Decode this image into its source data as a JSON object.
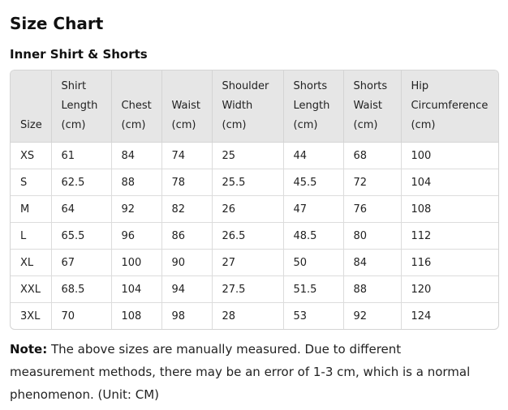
{
  "title": "Size Chart",
  "subtitle": "Inner Shirt & Shorts",
  "columns": [
    [
      "Size"
    ],
    [
      "Shirt",
      "Length",
      "(cm)"
    ],
    [
      "Chest",
      "(cm)"
    ],
    [
      "Waist",
      "(cm)"
    ],
    [
      "Shoulder",
      "Width",
      "(cm)"
    ],
    [
      "Shorts",
      "Length",
      "(cm)"
    ],
    [
      "Shorts",
      "Waist",
      "(cm)"
    ],
    [
      "Hip",
      "Circumference",
      "(cm)"
    ]
  ],
  "rows": [
    [
      "XS",
      "61",
      "84",
      "74",
      "25",
      "44",
      "68",
      "100"
    ],
    [
      "S",
      "62.5",
      "88",
      "78",
      "25.5",
      "45.5",
      "72",
      "104"
    ],
    [
      "M",
      "64",
      "92",
      "82",
      "26",
      "47",
      "76",
      "108"
    ],
    [
      "L",
      "65.5",
      "96",
      "86",
      "26.5",
      "48.5",
      "80",
      "112"
    ],
    [
      "XL",
      "67",
      "100",
      "90",
      "27",
      "50",
      "84",
      "116"
    ],
    [
      "XXL",
      "68.5",
      "104",
      "94",
      "27.5",
      "51.5",
      "88",
      "120"
    ],
    [
      "3XL",
      "70",
      "108",
      "98",
      "28",
      "53",
      "92",
      "124"
    ]
  ],
  "note": {
    "label": "Note:",
    "text": " The above sizes are manually measured. Due to different measurement methods, there may be an error of 1-3 cm, which is a normal phenomenon. (Unit: CM)"
  }
}
